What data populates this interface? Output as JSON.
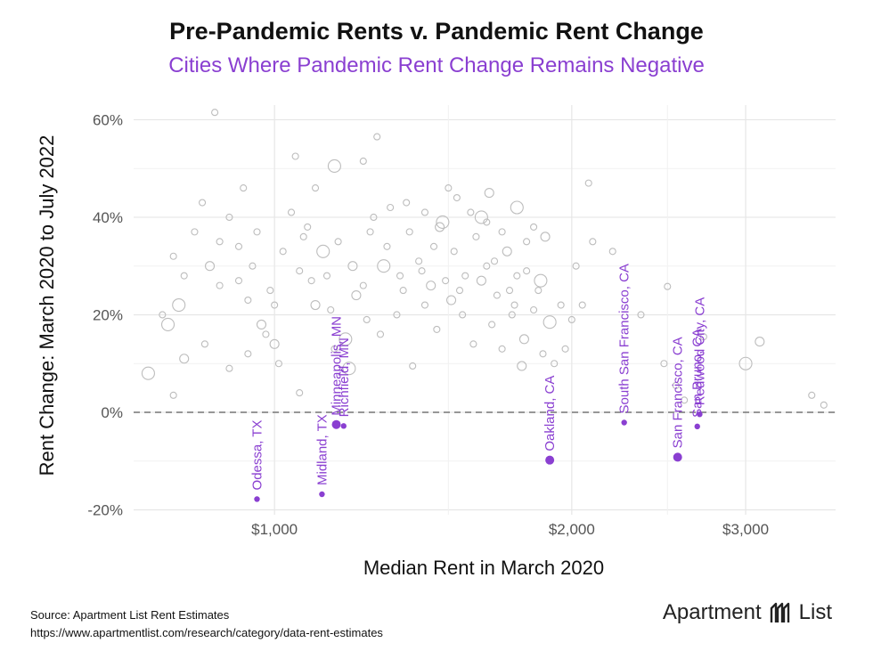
{
  "chart_data": {
    "type": "scatter",
    "title": "Pre-Pandemic Rents v. Pandemic Rent Change",
    "subtitle": "Cities Where Pandemic Rent Change Remains Negative",
    "xlabel": "Median Rent in March 2020",
    "ylabel": "Rent Change: March 2020 to July 2022",
    "x_scale": "log",
    "xlim": [
      720,
      3700
    ],
    "ylim": [
      -21,
      63
    ],
    "x_ticks": [
      {
        "value": 1000,
        "label": "$1,000"
      },
      {
        "value": 2000,
        "label": "$2,000"
      },
      {
        "value": 3000,
        "label": "$3,000"
      }
    ],
    "y_ticks": [
      {
        "value": -20,
        "label": "-20%"
      },
      {
        "value": 0,
        "label": "0%"
      },
      {
        "value": 20,
        "label": "20%"
      },
      {
        "value": 40,
        "label": "40%"
      },
      {
        "value": 60,
        "label": "60%"
      }
    ],
    "reference_line": {
      "y": 0,
      "style": "dashed"
    },
    "highlighted_series": [
      {
        "name": "Odessa, TX",
        "x": 960,
        "y": -17.8
      },
      {
        "name": "Midland, TX",
        "x": 1117,
        "y": -16.8
      },
      {
        "name": "Minneapolis, MN",
        "x": 1155,
        "y": -2.5
      },
      {
        "name": "Richfield, MN",
        "x": 1175,
        "y": -2.8
      },
      {
        "name": "Oakland, CA",
        "x": 1900,
        "y": -9.8
      },
      {
        "name": "South San Francisco, CA",
        "x": 2260,
        "y": -2.1
      },
      {
        "name": "San Francisco, CA",
        "x": 2560,
        "y": -9.2
      },
      {
        "name": "San Bruno, CA",
        "x": 2680,
        "y": -2.9
      },
      {
        "name": "Redwood City, CA",
        "x": 2695,
        "y": -0.4
      }
    ],
    "background_series": {
      "name": "Other cities",
      "points": [
        [
          745,
          8
        ],
        [
          770,
          20
        ],
        [
          790,
          3.5
        ],
        [
          810,
          28
        ],
        [
          845,
          43
        ],
        [
          870,
          61.5
        ],
        [
          930,
          46
        ],
        [
          1000,
          14
        ],
        [
          1050,
          52.5
        ],
        [
          1100,
          46
        ],
        [
          1150,
          50.5
        ],
        [
          1230,
          51.5
        ],
        [
          1270,
          56.5
        ],
        [
          1500,
          46
        ],
        [
          1650,
          45
        ],
        [
          2080,
          47
        ],
        [
          2100,
          35
        ],
        [
          2200,
          33
        ],
        [
          2480,
          10
        ],
        [
          2720,
          15.5
        ],
        [
          3000,
          10
        ],
        [
          3100,
          14.5
        ],
        [
          3500,
          3.5
        ],
        [
          3600,
          1.5
        ],
        [
          2500,
          25.8
        ],
        [
          2350,
          20
        ],
        [
          2550,
          5.5
        ],
        [
          2600,
          2.5
        ],
        [
          1780,
          9.5
        ],
        [
          1750,
          22
        ],
        [
          800,
          22
        ],
        [
          790,
          32
        ],
        [
          830,
          37
        ],
        [
          900,
          40
        ],
        [
          950,
          30
        ],
        [
          970,
          18
        ],
        [
          990,
          25
        ],
        [
          1020,
          33
        ],
        [
          1060,
          29
        ],
        [
          1080,
          38
        ],
        [
          1120,
          33
        ],
        [
          1160,
          35
        ],
        [
          1200,
          30
        ],
        [
          1230,
          26
        ],
        [
          1260,
          40
        ],
        [
          1300,
          34
        ],
        [
          1340,
          28
        ],
        [
          1370,
          37
        ],
        [
          1400,
          31
        ],
        [
          1440,
          26
        ],
        [
          1480,
          39
        ],
        [
          1520,
          33
        ],
        [
          1560,
          28
        ],
        [
          1600,
          36
        ],
        [
          1640,
          30
        ],
        [
          1680,
          24
        ],
        [
          1720,
          33
        ],
        [
          1760,
          28
        ],
        [
          1800,
          35
        ],
        [
          1850,
          25
        ],
        [
          1900,
          18.5
        ],
        [
          1950,
          22
        ],
        [
          2000,
          19
        ],
        [
          860,
          30
        ],
        [
          880,
          26
        ],
        [
          920,
          34
        ],
        [
          940,
          23
        ],
        [
          1040,
          41
        ],
        [
          1090,
          27
        ],
        [
          1140,
          21
        ],
        [
          1180,
          15
        ],
        [
          1240,
          19
        ],
        [
          1280,
          16
        ],
        [
          1330,
          20
        ],
        [
          1380,
          9.5
        ],
        [
          1420,
          22
        ],
        [
          1460,
          17
        ],
        [
          1510,
          23
        ],
        [
          1550,
          20
        ],
        [
          1590,
          14
        ],
        [
          1620,
          40
        ],
        [
          1660,
          18
        ],
        [
          1700,
          13
        ],
        [
          1740,
          20
        ],
        [
          1790,
          15
        ],
        [
          1830,
          21
        ],
        [
          1870,
          12
        ],
        [
          1920,
          10
        ],
        [
          1970,
          13
        ],
        [
          2050,
          22
        ],
        [
          780,
          18
        ],
        [
          810,
          11
        ],
        [
          850,
          14
        ],
        [
          900,
          9
        ],
        [
          940,
          12
        ],
        [
          980,
          16
        ],
        [
          1010,
          10
        ],
        [
          1060,
          4
        ],
        [
          1100,
          22
        ],
        [
          1150,
          13
        ],
        [
          1190,
          9
        ],
        [
          1250,
          37
        ],
        [
          1310,
          42
        ],
        [
          1360,
          43
        ],
        [
          1420,
          41
        ],
        [
          1470,
          38
        ],
        [
          1530,
          44
        ],
        [
          1580,
          41
        ],
        [
          1640,
          39
        ],
        [
          1700,
          37
        ],
        [
          1760,
          42
        ],
        [
          1830,
          38
        ],
        [
          1880,
          36
        ],
        [
          880,
          35
        ],
        [
          920,
          27
        ],
        [
          960,
          37
        ],
        [
          1000,
          22
        ],
        [
          1070,
          36
        ],
        [
          1130,
          28
        ],
        [
          1210,
          24
        ],
        [
          1290,
          30
        ],
        [
          1350,
          25
        ],
        [
          1410,
          29
        ],
        [
          1450,
          34
        ],
        [
          1490,
          27
        ],
        [
          1540,
          25
        ],
        [
          1620,
          27
        ],
        [
          1670,
          31
        ],
        [
          1730,
          25
        ],
        [
          1800,
          29
        ],
        [
          1860,
          27
        ],
        [
          2020,
          30
        ]
      ]
    }
  },
  "footer": {
    "source": "Source: Apartment List Rent Estimates",
    "url": "https://www.apartmentlist.com/research/category/data-rent-estimates",
    "brand_left": "Apartment",
    "brand_right": "List"
  },
  "colors": {
    "highlight": "#8a3fd1",
    "background_points": "#bdbdbd",
    "grid": "#e6e6e6"
  }
}
